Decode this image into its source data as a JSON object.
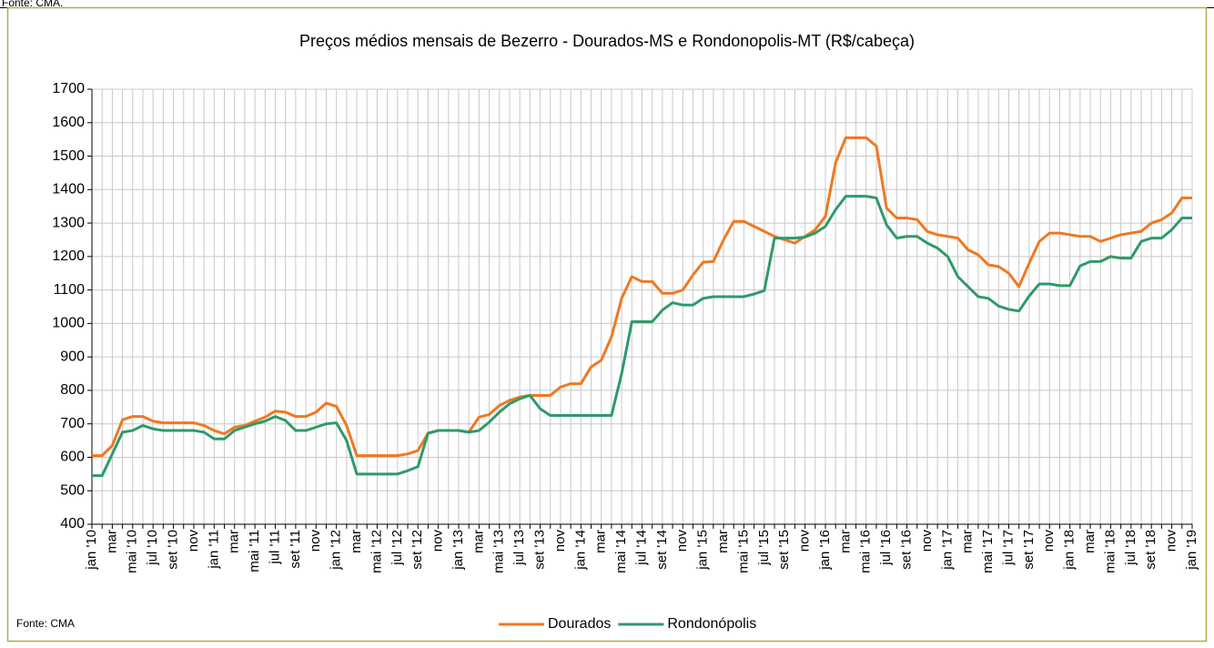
{
  "source": "Fonte: CMA.",
  "chart_data": {
    "type": "line",
    "title": "Preços médios mensais de Bezerro - Dourados-MS e Rondonopolis-MT (R$/cabeça)",
    "source": "Fonte: CMA",
    "categories": [
      "jan '10",
      null,
      "mar",
      null,
      "mai '10",
      null,
      "jul '10",
      null,
      "set '10",
      null,
      "nov",
      null,
      "jan '11",
      null,
      "mar",
      null,
      "mai '11",
      null,
      "jul '11",
      null,
      "set '11",
      null,
      "nov",
      null,
      "jan '12",
      null,
      "mar",
      null,
      "mai '12",
      null,
      "jul '12",
      null,
      "set '12",
      null,
      "nov",
      null,
      "jan '13",
      null,
      "mar",
      null,
      "mai '13",
      null,
      "jul '13",
      null,
      "set '13",
      null,
      "nov",
      null,
      "jan '14",
      null,
      "mar",
      null,
      "mai '14",
      null,
      "jul '14",
      null,
      "set '14",
      null,
      "nov",
      null,
      "jan '15",
      null,
      "mar",
      null,
      "mai '15",
      null,
      "jul '15",
      null,
      "set '15",
      null,
      "nov",
      null,
      "jan '16",
      null,
      "mar",
      null,
      "mai '16",
      null,
      "jul '16",
      null,
      "set '16",
      null,
      "nov",
      null,
      "jan '17",
      null,
      "mar",
      null,
      "mai '17",
      null,
      "jul '17",
      null,
      "set '17",
      null,
      "nov",
      null,
      "jan '18",
      null,
      "mar",
      null,
      "mai '18",
      null,
      "jul '18",
      null,
      "set '18",
      null,
      "nov",
      null,
      "jan '19"
    ],
    "series": [
      {
        "name": "Dourados",
        "color": "#f07820",
        "values": [
          605,
          605,
          635,
          712,
          722,
          722,
          708,
          703,
          703,
          703,
          703,
          695,
          680,
          670,
          690,
          695,
          708,
          720,
          738,
          735,
          722,
          722,
          735,
          762,
          752,
          695,
          605,
          605,
          605,
          605,
          605,
          610,
          620,
          672,
          680,
          680,
          680,
          675,
          720,
          728,
          755,
          770,
          780,
          785,
          785,
          785,
          810,
          820,
          820,
          870,
          890,
          960,
          1075,
          1140,
          1125,
          1125,
          1090,
          1090,
          1100,
          1145,
          1183,
          1185,
          1250,
          1305,
          1305,
          1290,
          1275,
          1260,
          1250,
          1240,
          1260,
          1280,
          1320,
          1480,
          1555,
          1555,
          1555,
          1530,
          1345,
          1315,
          1315,
          1310,
          1275,
          1265,
          1260,
          1255,
          1220,
          1205,
          1175,
          1170,
          1150,
          1110,
          1180,
          1245,
          1270,
          1270,
          1265,
          1260,
          1260,
          1245,
          1255,
          1265,
          1270,
          1275,
          1300,
          1310,
          1330,
          1375,
          1375
        ]
      },
      {
        "name": "Rondonópolis",
        "color": "#2e9a6a",
        "values": [
          545,
          545,
          610,
          675,
          680,
          695,
          685,
          680,
          680,
          680,
          680,
          675,
          655,
          655,
          680,
          690,
          700,
          708,
          722,
          710,
          680,
          680,
          690,
          700,
          703,
          650,
          550,
          550,
          550,
          550,
          550,
          560,
          572,
          672,
          680,
          680,
          680,
          675,
          680,
          705,
          735,
          760,
          775,
          785,
          745,
          725,
          725,
          725,
          725,
          725,
          725,
          725,
          850,
          1005,
          1005,
          1005,
          1040,
          1062,
          1055,
          1055,
          1075,
          1080,
          1080,
          1080,
          1080,
          1088,
          1098,
          1255,
          1255,
          1255,
          1258,
          1270,
          1290,
          1340,
          1380,
          1380,
          1380,
          1375,
          1295,
          1255,
          1260,
          1260,
          1240,
          1225,
          1200,
          1140,
          1110,
          1080,
          1075,
          1052,
          1042,
          1037,
          1082,
          1118,
          1118,
          1113,
          1113,
          1172,
          1185,
          1185,
          1200,
          1195,
          1195,
          1245,
          1255,
          1255,
          1280,
          1315,
          1315
        ]
      }
    ],
    "ylim": [
      400,
      1700
    ],
    "yticks": [
      400,
      500,
      600,
      700,
      800,
      900,
      1000,
      1100,
      1200,
      1300,
      1400,
      1500,
      1600,
      1700
    ],
    "grid": true,
    "legend": "bottom"
  }
}
